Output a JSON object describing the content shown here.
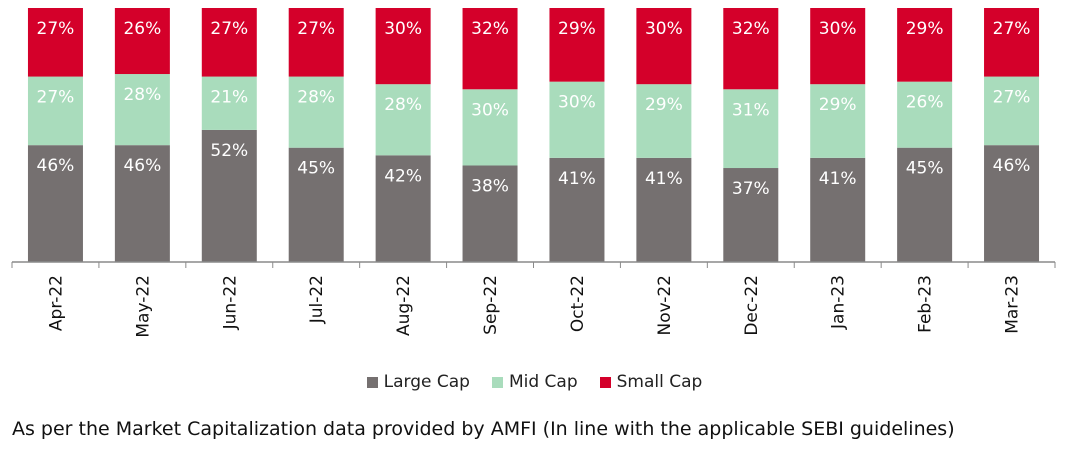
{
  "chart_data": {
    "type": "bar",
    "stacked": true,
    "categories": [
      "Apr-22",
      "May-22",
      "Jun-22",
      "Jul-22",
      "Aug-22",
      "Sep-22",
      "Oct-22",
      "Nov-22",
      "Dec-22",
      "Jan-23",
      "Feb-23",
      "Mar-23"
    ],
    "series": [
      {
        "name": "Large Cap",
        "color": "#757070",
        "values": [
          46,
          46,
          52,
          45,
          42,
          38,
          41,
          41,
          37,
          41,
          45,
          46
        ]
      },
      {
        "name": "Mid Cap",
        "color": "#a9dcbc",
        "values": [
          27,
          28,
          21,
          28,
          28,
          30,
          30,
          29,
          31,
          29,
          26,
          27
        ]
      },
      {
        "name": "Small Cap",
        "color": "#d4002a",
        "values": [
          27,
          26,
          27,
          27,
          30,
          32,
          29,
          30,
          32,
          30,
          29,
          27
        ]
      }
    ],
    "ylim": [
      0,
      100
    ],
    "value_suffix": "%",
    "legend_position": "bottom",
    "grid": false
  },
  "footnote": "As per the Market Capitalization data provided by AMFI (In line with the applicable SEBI guidelines)"
}
